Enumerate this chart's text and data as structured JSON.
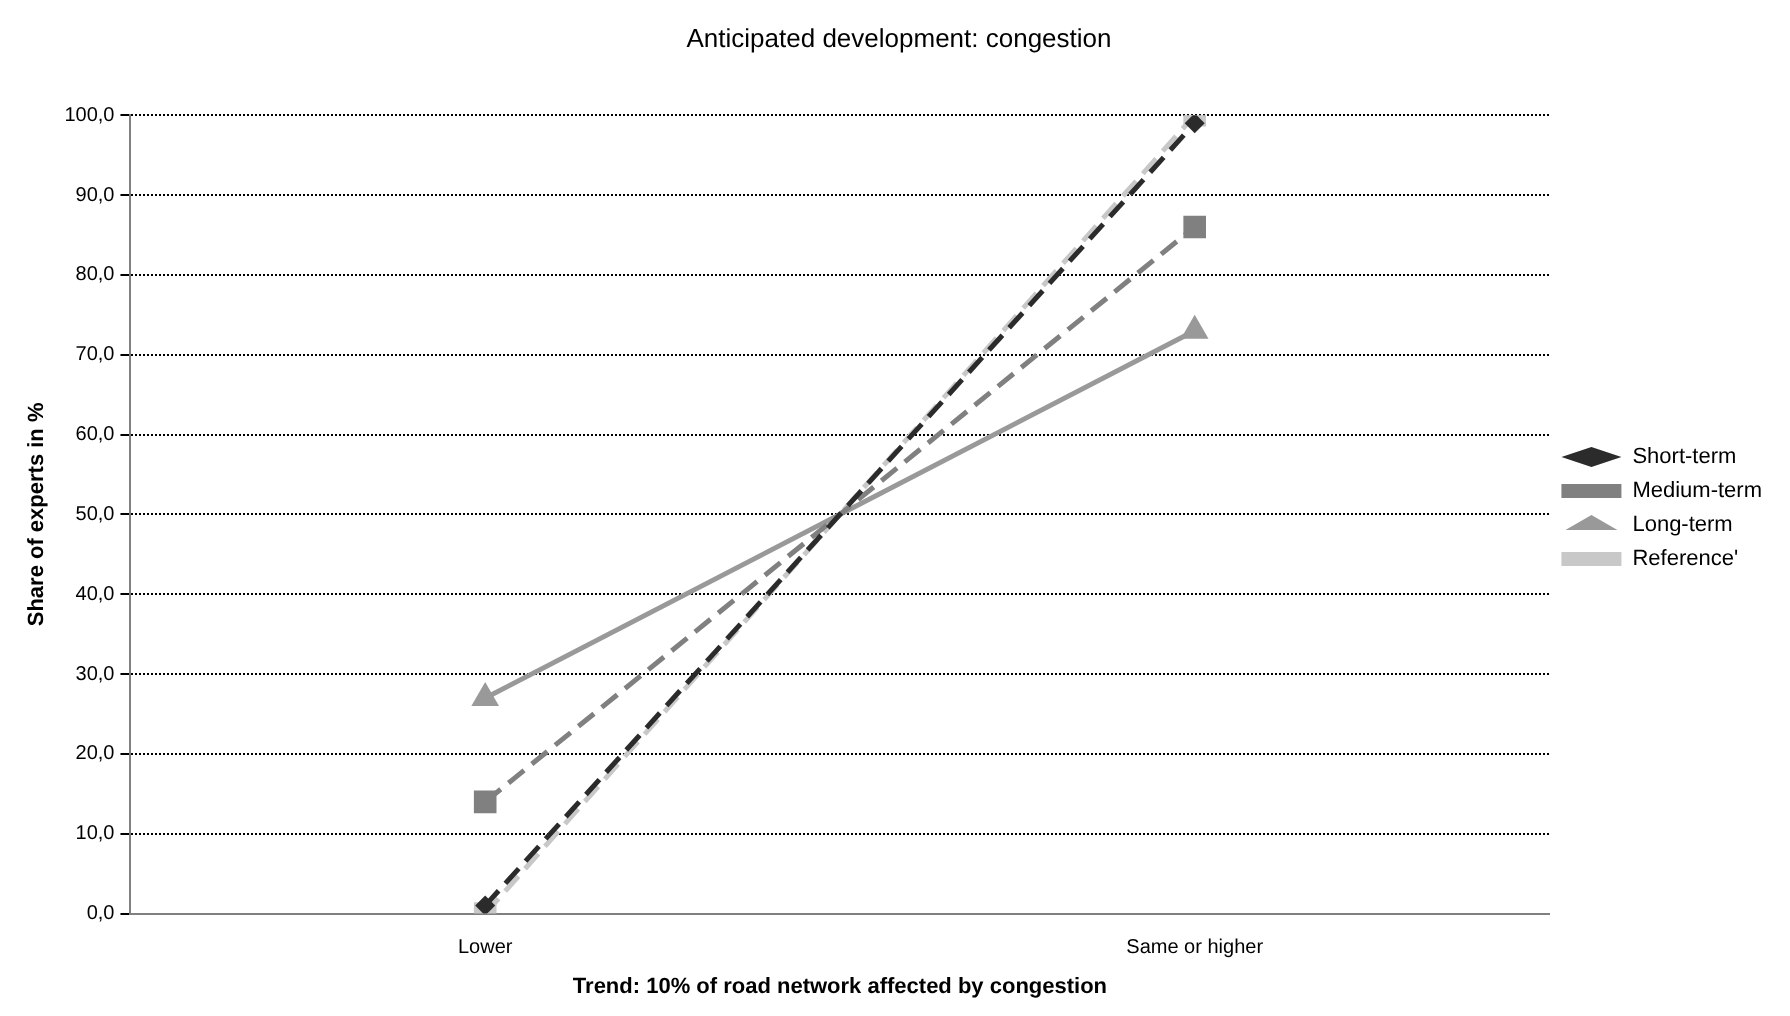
{
  "chart_data": {
    "type": "line",
    "title": "Anticipated development: congestion",
    "xlabel": "Trend: 10% of road network affected by congestion",
    "ylabel": "Share of experts in %",
    "categories": [
      "Lower",
      "Same or higher"
    ],
    "series": [
      {
        "name": "Short-term",
        "color": "#2b2b2b",
        "values": [
          1,
          99
        ],
        "marker": "diamond",
        "line_style": "dashed"
      },
      {
        "name": "Medium-term",
        "color": "#808080",
        "values": [
          14,
          86
        ],
        "marker": "square",
        "line_style": "dashed"
      },
      {
        "name": "Long-term",
        "color": "#999999",
        "values": [
          27,
          73
        ],
        "marker": "triangle",
        "line_style": "solid"
      },
      {
        "name": "Reference'",
        "color": "#c8c8c8",
        "values": [
          0,
          100
        ],
        "marker": "square",
        "line_style": "dashed"
      }
    ],
    "ylim": [
      0,
      100
    ],
    "yticks": [
      {
        "value": 0,
        "label": "0,0"
      },
      {
        "value": 10,
        "label": "10,0"
      },
      {
        "value": 20,
        "label": "20,0"
      },
      {
        "value": 30,
        "label": "30,0"
      },
      {
        "value": 40,
        "label": "40,0"
      },
      {
        "value": 50,
        "label": "50,0"
      },
      {
        "value": 60,
        "label": "60,0"
      },
      {
        "value": 70,
        "label": "70,0"
      },
      {
        "value": 80,
        "label": "80,0"
      },
      {
        "value": 90,
        "label": "90,0"
      },
      {
        "value": 100,
        "label": "100,0"
      }
    ],
    "grid": "y",
    "legend": "right"
  }
}
